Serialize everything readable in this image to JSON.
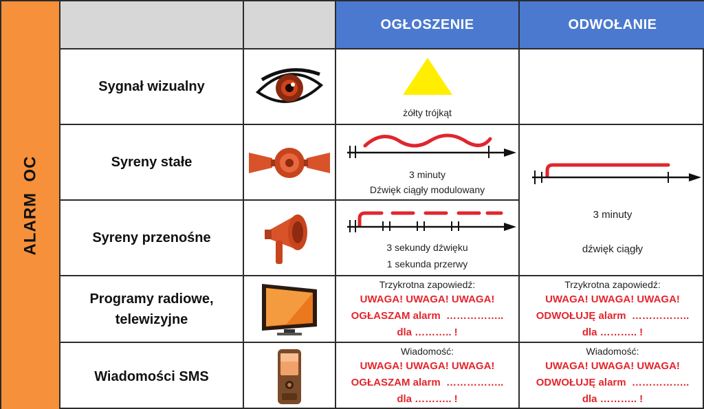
{
  "sidebar": {
    "label": "ALARM  OC"
  },
  "header": {
    "col_announce": "OGŁOSZENIE",
    "col_cancel": "ODWOŁANIE"
  },
  "rows": {
    "visual": {
      "label": "Sygnał wizualny",
      "icon": "eye-icon",
      "announce_caption": "żółty trójkąt",
      "triangle_color": "#ffee00"
    },
    "fixed_sirens": {
      "label": "Syreny stałe",
      "icon": "siren-horns-icon",
      "announce_line1": "3 minuty",
      "announce_line2": "Dźwięk ciągły modulowany"
    },
    "portable_sirens": {
      "label": "Syreny przenośne",
      "icon": "megaphone-icon",
      "announce_line1": "3 sekundy dźwięku",
      "announce_line2": "1 sekunda przerwy"
    },
    "cancel_sirens": {
      "line1": "3 minuty",
      "line2": "dźwięk ciągły"
    },
    "radio_tv": {
      "label_line1": "Programy radiowe,",
      "label_line2": "telewizyjne",
      "icon": "tv-icon",
      "announce_intro": "Trzykrotna zapowiedź:",
      "announce_l1": "UWAGA! UWAGA! UWAGA!",
      "announce_l2": "OGŁASZAM alarm  ……………..",
      "announce_l3": "dla ……….. !",
      "cancel_intro": "Trzykrotna zapowiedź:",
      "cancel_l1": "UWAGA! UWAGA! UWAGA!",
      "cancel_l2": "ODWOŁUJĘ alarm  ……………..",
      "cancel_l3": "dla ……….. !"
    },
    "sms": {
      "label": "Wiadomości SMS",
      "icon": "mobile-phone-icon",
      "announce_intro": "Wiadomość:",
      "announce_l1": "UWAGA! UWAGA! UWAGA!",
      "announce_l2": "OGŁASZAM alarm  ……………..",
      "announce_l3": "dla ……….. !",
      "cancel_intro": "Wiadomość:",
      "cancel_l1": "UWAGA! UWAGA! UWAGA!",
      "cancel_l2": "ODWOŁUJĘ alarm  ……………..",
      "cancel_l3": "dla ……….. !"
    }
  },
  "colors": {
    "sidebar": "#f7903a",
    "header_blue": "#4b79cf",
    "header_gray": "#d7d7d7",
    "alert_red": "#e3262d",
    "signal_red": "#e0262d"
  }
}
